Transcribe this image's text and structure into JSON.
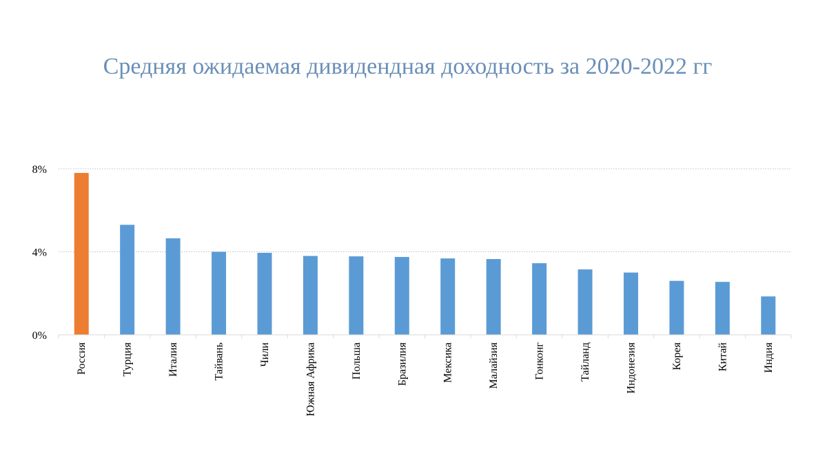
{
  "chart_data": {
    "type": "bar",
    "title": "Средняя ожидаемая дивидендная доходность за 2020-2022 гг",
    "xlabel": "",
    "ylabel": "",
    "ylim": [
      0,
      8
    ],
    "yticks": [
      0,
      4,
      8
    ],
    "ytick_labels": [
      "0%",
      "4%",
      "8%"
    ],
    "grid": "horizontal dotted",
    "categories": [
      "Россия",
      "Турция",
      "Италия",
      "Тайвань",
      "Чили",
      "Южная Африка",
      "Польша",
      "Бразилия",
      "Мексика",
      "Малайзия",
      "Гонконг",
      "Тайланд",
      "Индонезия",
      "Корея",
      "Китай",
      "Индия"
    ],
    "values": [
      7.8,
      5.3,
      4.65,
      4.0,
      3.95,
      3.8,
      3.78,
      3.75,
      3.68,
      3.65,
      3.45,
      3.15,
      3.0,
      2.6,
      2.55,
      1.85
    ],
    "colors": {
      "highlight": "#ed7d31",
      "default": "#5b9bd5",
      "grid": "#bfbfbf",
      "axis": "#d9d9d9",
      "title": "#6a8fb8"
    },
    "highlight_index": 0
  }
}
